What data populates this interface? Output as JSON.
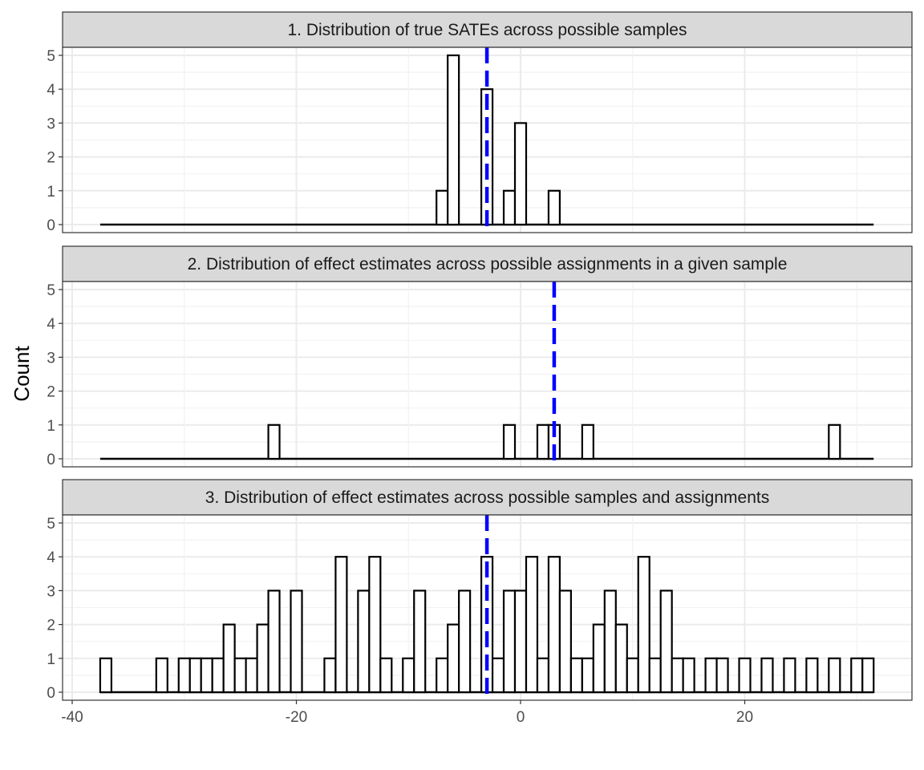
{
  "chart_data": {
    "type": "bar",
    "chart_kind": "histogram (faceted, step outline)",
    "ylabel": "Count",
    "xlabel": "",
    "xlim": [
      -40,
      33
    ],
    "ylim": [
      0,
      5
    ],
    "x_ticks": [
      -40,
      -20,
      0,
      20
    ],
    "y_ticks": [
      0,
      1,
      2,
      3,
      4,
      5
    ],
    "bin_width": 1,
    "grid": true,
    "bar_fill": "#ffffff",
    "bar_outline": "#000000",
    "reference_line_color": "#0000ff",
    "reference_line_style": "dashed",
    "panels": [
      {
        "title": "1. Distribution of true SATEs across possible samples",
        "mean_line_x": -3,
        "range": [
          -37.5,
          31.5
        ],
        "bins": [
          {
            "x": -7,
            "count": 1
          },
          {
            "x": -6,
            "count": 5
          },
          {
            "x": -3,
            "count": 4
          },
          {
            "x": -1,
            "count": 1
          },
          {
            "x": 0,
            "count": 3
          },
          {
            "x": 3,
            "count": 1
          }
        ]
      },
      {
        "title": "2. Distribution of effect estimates across possible assignments in a given sample",
        "mean_line_x": 3,
        "range": [
          -37.5,
          31.5
        ],
        "bins": [
          {
            "x": -22,
            "count": 1
          },
          {
            "x": -1,
            "count": 1
          },
          {
            "x": 2,
            "count": 1
          },
          {
            "x": 3,
            "count": 1
          },
          {
            "x": 6,
            "count": 1
          },
          {
            "x": 28,
            "count": 1
          }
        ]
      },
      {
        "title": "3. Distribution of effect estimates across possible samples and assignments",
        "mean_line_x": -3,
        "range": [
          -37.5,
          31.5
        ],
        "bins": [
          {
            "x": -37,
            "count": 1
          },
          {
            "x": -32,
            "count": 1
          },
          {
            "x": -30,
            "count": 1
          },
          {
            "x": -29,
            "count": 1
          },
          {
            "x": -28,
            "count": 1
          },
          {
            "x": -27,
            "count": 1
          },
          {
            "x": -26,
            "count": 2
          },
          {
            "x": -25,
            "count": 1
          },
          {
            "x": -24,
            "count": 1
          },
          {
            "x": -23,
            "count": 2
          },
          {
            "x": -22,
            "count": 3
          },
          {
            "x": -20,
            "count": 3
          },
          {
            "x": -17,
            "count": 1
          },
          {
            "x": -16,
            "count": 4
          },
          {
            "x": -14,
            "count": 3
          },
          {
            "x": -13,
            "count": 4
          },
          {
            "x": -12,
            "count": 1
          },
          {
            "x": -10,
            "count": 1
          },
          {
            "x": -9,
            "count": 3
          },
          {
            "x": -7,
            "count": 1
          },
          {
            "x": -6,
            "count": 2
          },
          {
            "x": -5,
            "count": 3
          },
          {
            "x": -3,
            "count": 4
          },
          {
            "x": -2,
            "count": 1
          },
          {
            "x": -1,
            "count": 3
          },
          {
            "x": 0,
            "count": 3
          },
          {
            "x": 1,
            "count": 4
          },
          {
            "x": 2,
            "count": 1
          },
          {
            "x": 3,
            "count": 4
          },
          {
            "x": 4,
            "count": 3
          },
          {
            "x": 5,
            "count": 1
          },
          {
            "x": 6,
            "count": 1
          },
          {
            "x": 7,
            "count": 2
          },
          {
            "x": 8,
            "count": 3
          },
          {
            "x": 9,
            "count": 2
          },
          {
            "x": 10,
            "count": 1
          },
          {
            "x": 11,
            "count": 4
          },
          {
            "x": 12,
            "count": 1
          },
          {
            "x": 13,
            "count": 3
          },
          {
            "x": 14,
            "count": 1
          },
          {
            "x": 15,
            "count": 1
          },
          {
            "x": 17,
            "count": 1
          },
          {
            "x": 18,
            "count": 1
          },
          {
            "x": 20,
            "count": 1
          },
          {
            "x": 22,
            "count": 1
          },
          {
            "x": 24,
            "count": 1
          },
          {
            "x": 26,
            "count": 1
          },
          {
            "x": 28,
            "count": 1
          },
          {
            "x": 30,
            "count": 1
          },
          {
            "x": 31,
            "count": 1
          }
        ]
      }
    ]
  }
}
